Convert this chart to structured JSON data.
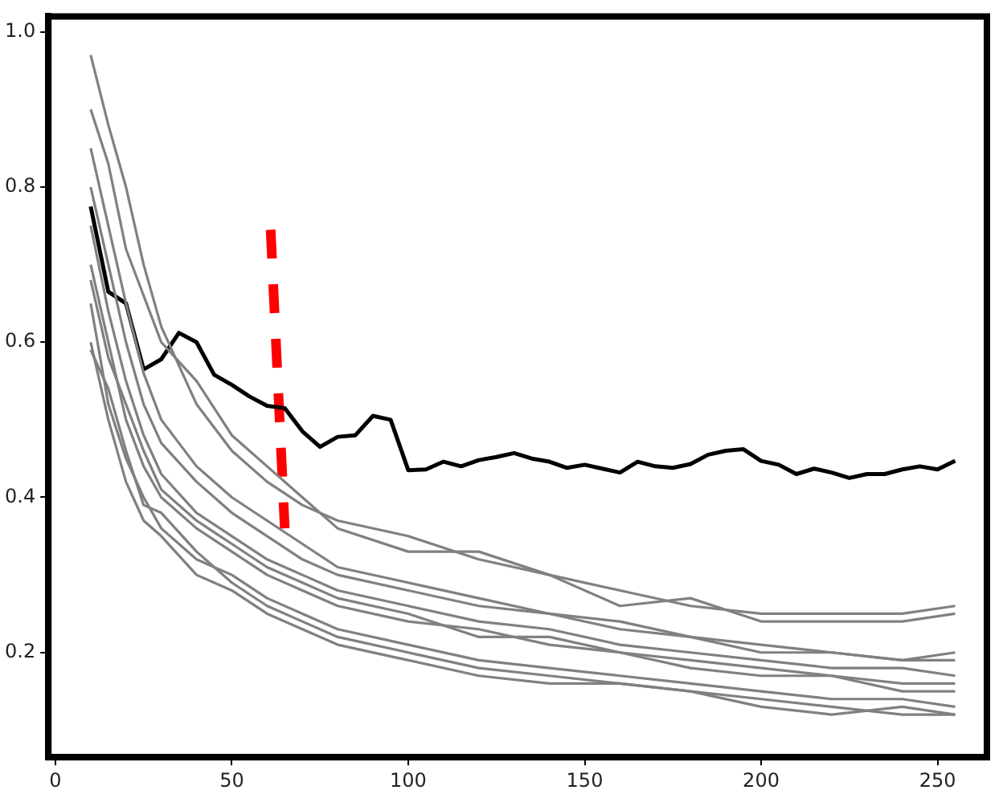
{
  "chart_data": {
    "type": "line",
    "xlim": [
      -2,
      264
    ],
    "ylim": [
      0.065,
      1.02
    ],
    "xticks": [
      0,
      50,
      100,
      150,
      200,
      250
    ],
    "yticks": [
      0.2,
      0.4,
      0.6,
      0.8,
      {
        "value": 1,
        "label": "1.0"
      }
    ],
    "grid": false,
    "legend": false,
    "marker": "none",
    "line_style": "solid",
    "x": [
      10,
      15,
      20,
      25,
      30,
      40,
      50,
      60,
      70,
      80,
      100,
      120,
      140,
      160,
      180,
      200,
      220,
      240,
      255
    ],
    "series": [
      {
        "color": "#808080",
        "values": [
          0.97,
          0.88,
          0.8,
          0.7,
          0.62,
          0.52,
          0.46,
          0.42,
          0.39,
          0.37,
          0.35,
          0.32,
          0.3,
          0.28,
          0.26,
          0.25,
          0.25,
          0.25,
          0.26
        ]
      },
      {
        "color": "#808080",
        "values": [
          0.9,
          0.83,
          0.72,
          0.66,
          0.6,
          0.55,
          0.48,
          0.44,
          0.4,
          0.36,
          0.33,
          0.33,
          0.3,
          0.26,
          0.27,
          0.24,
          0.24,
          0.24,
          0.25
        ]
      },
      {
        "color": "#808080",
        "values": [
          0.85,
          0.75,
          0.65,
          0.56,
          0.5,
          0.44,
          0.4,
          0.37,
          0.34,
          0.31,
          0.29,
          0.27,
          0.25,
          0.24,
          0.22,
          0.2,
          0.2,
          0.19,
          0.2
        ]
      },
      {
        "color": "#808080",
        "values": [
          0.8,
          0.7,
          0.6,
          0.52,
          0.47,
          0.42,
          0.38,
          0.35,
          0.32,
          0.3,
          0.28,
          0.26,
          0.25,
          0.23,
          0.22,
          0.21,
          0.2,
          0.19,
          0.19
        ]
      },
      {
        "color": "#808080",
        "values": [
          0.75,
          0.64,
          0.55,
          0.48,
          0.43,
          0.38,
          0.35,
          0.32,
          0.3,
          0.28,
          0.26,
          0.24,
          0.23,
          0.21,
          0.2,
          0.19,
          0.18,
          0.18,
          0.17
        ]
      },
      {
        "color": "#808080",
        "values": [
          0.7,
          0.6,
          0.5,
          0.44,
          0.4,
          0.36,
          0.33,
          0.3,
          0.28,
          0.26,
          0.24,
          0.23,
          0.21,
          0.2,
          0.19,
          0.18,
          0.17,
          0.16,
          0.16
        ]
      },
      {
        "color": "#808080",
        "values": [
          0.68,
          0.58,
          0.52,
          0.46,
          0.41,
          0.37,
          0.34,
          0.31,
          0.29,
          0.27,
          0.25,
          0.22,
          0.22,
          0.2,
          0.18,
          0.17,
          0.17,
          0.15,
          0.15
        ]
      },
      {
        "color": "#808080",
        "values": [
          0.65,
          0.52,
          0.45,
          0.4,
          0.36,
          0.32,
          0.3,
          0.27,
          0.25,
          0.23,
          0.21,
          0.19,
          0.18,
          0.17,
          0.16,
          0.15,
          0.14,
          0.14,
          0.13
        ]
      },
      {
        "color": "#808080",
        "values": [
          0.6,
          0.5,
          0.42,
          0.37,
          0.35,
          0.3,
          0.28,
          0.25,
          0.23,
          0.21,
          0.19,
          0.17,
          0.16,
          0.16,
          0.15,
          0.14,
          0.13,
          0.12,
          0.12
        ]
      },
      {
        "color": "#808080",
        "values": [
          0.59,
          0.54,
          0.46,
          0.39,
          0.38,
          0.33,
          0.29,
          0.26,
          0.24,
          0.22,
          0.2,
          0.18,
          0.17,
          0.16,
          0.15,
          0.13,
          0.12,
          0.13,
          0.12
        ]
      },
      {
        "color": "#000000",
        "x": [
          10,
          15,
          20,
          25,
          30,
          35,
          40,
          45,
          50,
          55,
          60,
          65,
          70,
          75,
          80,
          85,
          90,
          95,
          100,
          105,
          110,
          115,
          120,
          125,
          130,
          135,
          140,
          145,
          150,
          155,
          160,
          165,
          170,
          175,
          180,
          185,
          190,
          195,
          200,
          205,
          210,
          215,
          220,
          225,
          230,
          235,
          240,
          245,
          250,
          255
        ],
        "values": [
          0.775,
          0.665,
          0.65,
          0.565,
          0.578,
          0.612,
          0.6,
          0.558,
          0.545,
          0.53,
          0.518,
          0.515,
          0.485,
          0.465,
          0.478,
          0.48,
          0.505,
          0.5,
          0.435,
          0.436,
          0.446,
          0.44,
          0.448,
          0.452,
          0.457,
          0.45,
          0.446,
          0.438,
          0.442,
          0.437,
          0.432,
          0.446,
          0.44,
          0.438,
          0.443,
          0.455,
          0.46,
          0.462,
          0.447,
          0.442,
          0.43,
          0.437,
          0.432,
          0.425,
          0.43,
          0.43,
          0.436,
          0.44,
          0.436,
          0.447
        ]
      },
      {
        "color": "#ff0000",
        "x": [
          61,
          65
        ],
        "values": [
          0.745,
          0.36
        ],
        "line_style": "dashed"
      }
    ]
  }
}
